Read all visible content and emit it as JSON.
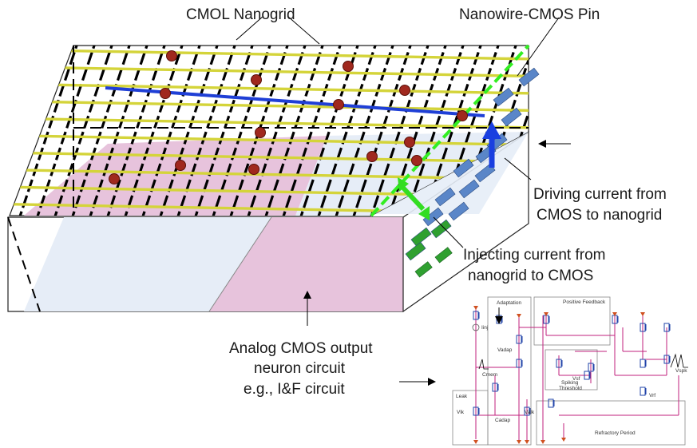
{
  "labels": {
    "nanogrid": "CMOL Nanogrid",
    "pin": "Nanowire-CMOS Pin",
    "driving_line1": "Driving current from",
    "driving_line2": "CMOS to nanogrid",
    "injecting_line1": "Injecting current from",
    "injecting_line2": "nanogrid to CMOS",
    "analog_line1": "Analog CMOS output",
    "analog_line2": "neuron circuit",
    "analog_line3": "e.g., I&F circuit"
  },
  "circuit": {
    "adaptation": "Adaptation",
    "positive_feedback": "Positive Feedback",
    "spiking_line1": "Spiking",
    "spiking_line2": "Threshold",
    "leak": "Leak",
    "refractory": "Refractory Period",
    "iinj": "Iinj",
    "vadap": "Vadap",
    "cmem": "Cmem",
    "cadap": "Cadap",
    "vlk_left": "Vlk",
    "vlk_right": "Valk",
    "vsf": "Vsf",
    "vrf": "Vrf",
    "vspk": "Vspk"
  },
  "colors": {
    "yellow_wire": "#d4d43a",
    "blue_wire": "#1f3fd6",
    "green_wire": "#33ee22",
    "nano_dot": "#a0281e",
    "pink_region": "#e7c3dc",
    "light_region": "#e6edf7",
    "pin_blue": "#5a86c8",
    "arrow_blue": "#1a3fe0",
    "arrow_green": "#33dd22",
    "circuit_wire": "#c0207c"
  }
}
